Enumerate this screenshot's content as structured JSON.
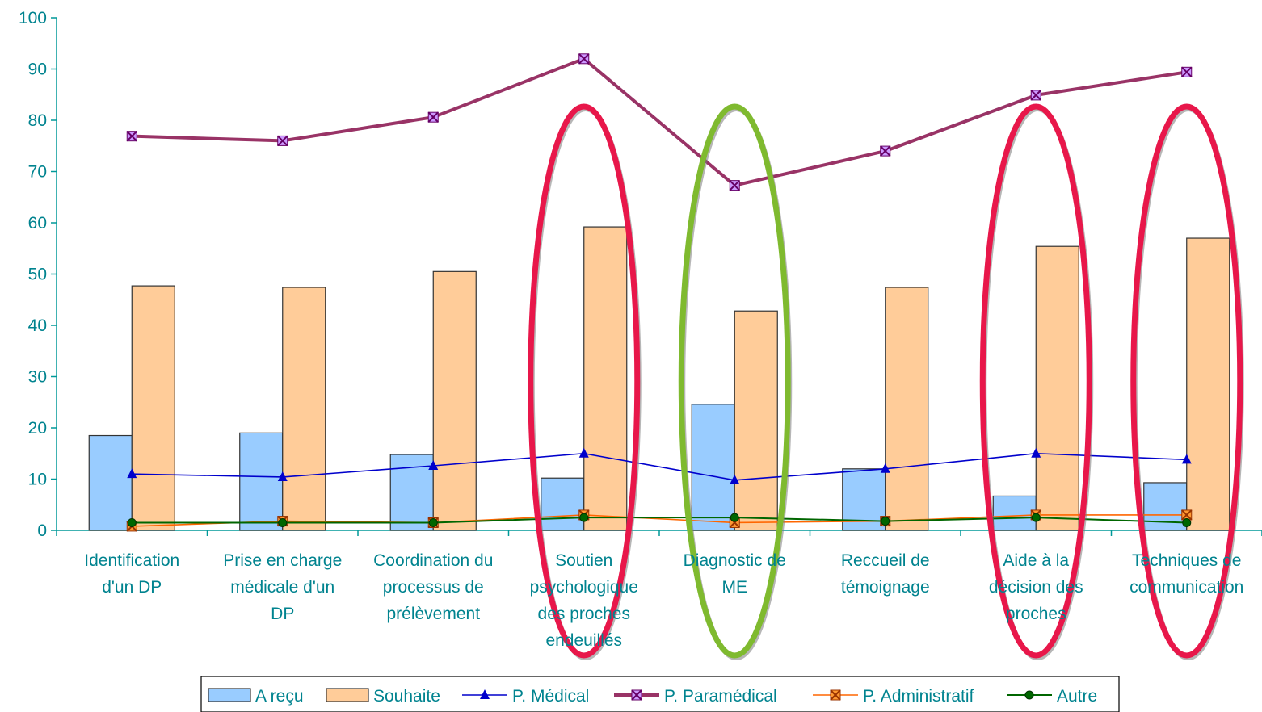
{
  "chart_data": {
    "type": "bar",
    "categories": [
      [
        "Identification",
        "d'un DP"
      ],
      [
        "Prise en charge",
        "médicale d'un",
        "DP"
      ],
      [
        "Coordination du",
        "processus de",
        "prélèvement"
      ],
      [
        "Soutien",
        "psychologique",
        "des proches",
        "endeuillés"
      ],
      [
        "Diagnostic de",
        "ME"
      ],
      [
        "Reccueil de",
        "témoignage"
      ],
      [
        "Aide à la",
        "décision des",
        "proches"
      ],
      [
        "Techniques de",
        "communication"
      ]
    ],
    "ylim": [
      0,
      100
    ],
    "yticks": [
      0,
      10,
      20,
      30,
      40,
      50,
      60,
      70,
      80,
      90,
      100
    ],
    "grid": false,
    "legend_position": "bottom",
    "bar_series": [
      {
        "name": "A reçu",
        "values": [
          18.5,
          19,
          14.8,
          10.2,
          24.6,
          12,
          6.7,
          9.3
        ],
        "color": "#99ccff"
      },
      {
        "name": "Souhaite",
        "values": [
          47.7,
          47.4,
          50.5,
          59.2,
          42.8,
          47.4,
          55.4,
          57
        ],
        "color": "#ffcc99"
      }
    ],
    "line_series": [
      {
        "name": "P. Médical",
        "values": [
          11,
          10.4,
          12.6,
          15,
          9.8,
          12,
          15,
          13.8
        ],
        "color": "#0000cc",
        "marker": "triangle"
      },
      {
        "name": "P. Paramédical",
        "values": [
          76.9,
          76,
          80.6,
          92,
          67.3,
          74,
          84.9,
          89.4
        ],
        "color": "#993366",
        "marker": "xsquare"
      },
      {
        "name": "P. Administratif",
        "values": [
          0.8,
          1.8,
          1.5,
          3,
          1.5,
          1.8,
          3,
          3
        ],
        "color": "#ff6600",
        "marker": "xsquare-orange"
      },
      {
        "name": "Autre",
        "values": [
          1.5,
          1.5,
          1.5,
          2.5,
          2.5,
          1.8,
          2.5,
          1.5
        ],
        "color": "#006600",
        "marker": "circle"
      }
    ],
    "highlight_ellipses": [
      {
        "category_index": 3,
        "color": "#e8174a"
      },
      {
        "category_index": 4,
        "color": "#7fba2f"
      },
      {
        "category_index": 6,
        "color": "#e8174a"
      },
      {
        "category_index": 7,
        "color": "#e8174a"
      }
    ]
  }
}
